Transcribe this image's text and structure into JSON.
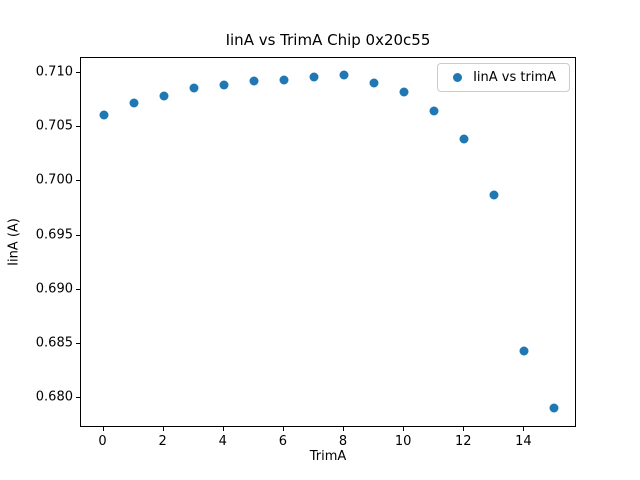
{
  "chart_data": {
    "type": "scatter",
    "title": "IinA vs TrimA Chip 0x20c55",
    "xlabel": "TrimA",
    "ylabel": "IinA (A)",
    "legend_label": "IinA vs trimA",
    "legend_position": "upper right",
    "marker_color": "#1f77b4",
    "background_color": "#ffffff",
    "spine_color": "#000000",
    "grid": false,
    "x": [
      0,
      1,
      2,
      3,
      4,
      5,
      6,
      7,
      8,
      9,
      10,
      11,
      12,
      13,
      14,
      15
    ],
    "y": [
      0.7061,
      0.7072,
      0.7079,
      0.7086,
      0.7089,
      0.7092,
      0.7093,
      0.7096,
      0.7098,
      0.7091,
      0.7082,
      0.7065,
      0.7039,
      0.6987,
      0.6844,
      0.6791
    ],
    "xlim": [
      -0.75,
      15.75
    ],
    "ylim": [
      0.67726,
      0.71136
    ],
    "xticks": [
      0,
      2,
      4,
      6,
      8,
      10,
      12,
      14
    ],
    "yticks": [
      0.68,
      0.685,
      0.69,
      0.695,
      0.7,
      0.705,
      0.71
    ],
    "ytick_decimals": 3
  }
}
